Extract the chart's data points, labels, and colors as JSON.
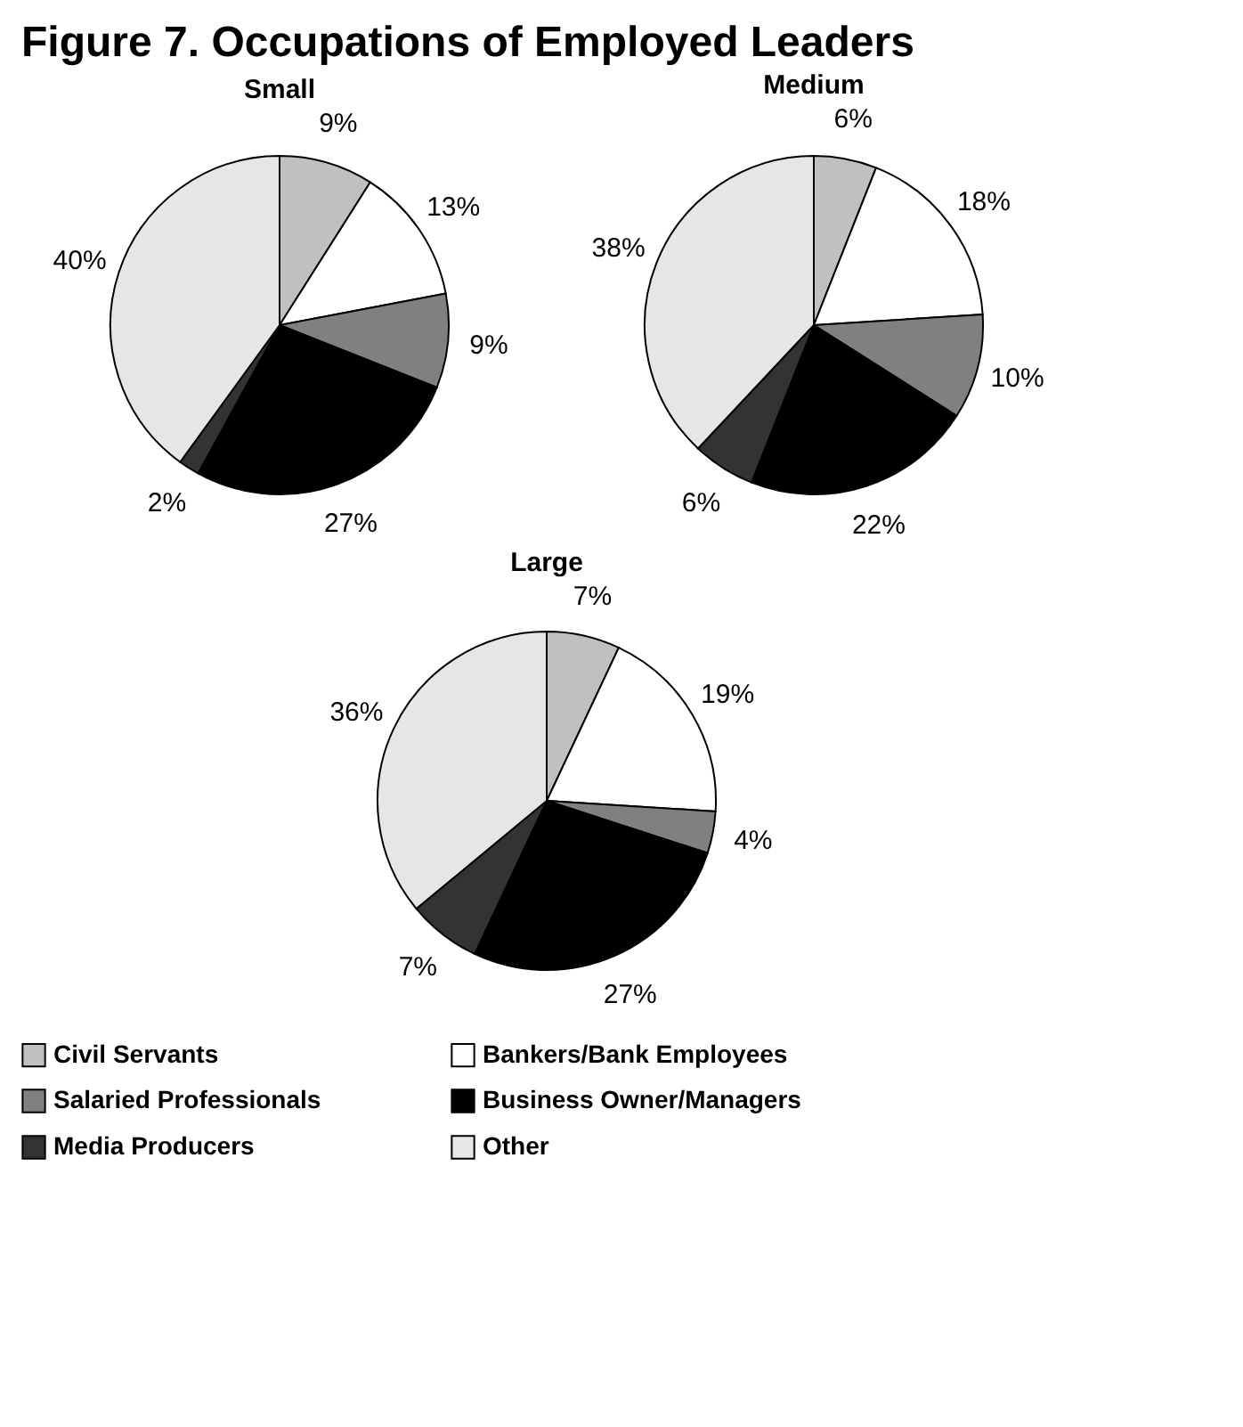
{
  "chart_data": [
    {
      "type": "pie",
      "title": "Figure 7.  Occupations of Employed Leaders",
      "subtitle": "Small",
      "categories": [
        "Civil Servants",
        "Bankers/Bank Employees",
        "Salaried Professionals",
        "Business Owner/Managers",
        "Media Producers",
        "Other"
      ],
      "values": [
        9,
        13,
        9,
        27,
        2,
        40
      ],
      "value_labels": [
        "9%",
        "13%",
        "9%",
        "27%",
        "2%",
        "40%"
      ],
      "colors": [
        "#c0c0c0",
        "#ffffff",
        "#808080",
        "#000000",
        "#333333",
        "#e6e6e6"
      ],
      "legend": "bottom"
    },
    {
      "type": "pie",
      "subtitle": "Medium",
      "values": [
        6,
        18,
        10,
        22,
        6,
        38
      ],
      "value_labels": [
        "6%",
        "18%",
        "10%",
        "22%",
        "6%",
        "38%"
      ]
    },
    {
      "type": "pie",
      "subtitle": "Large",
      "values": [
        7,
        19,
        4,
        27,
        7,
        36
      ],
      "value_labels": [
        "7%",
        "19%",
        "4%",
        "27%",
        "7%",
        "36%"
      ]
    }
  ]
}
